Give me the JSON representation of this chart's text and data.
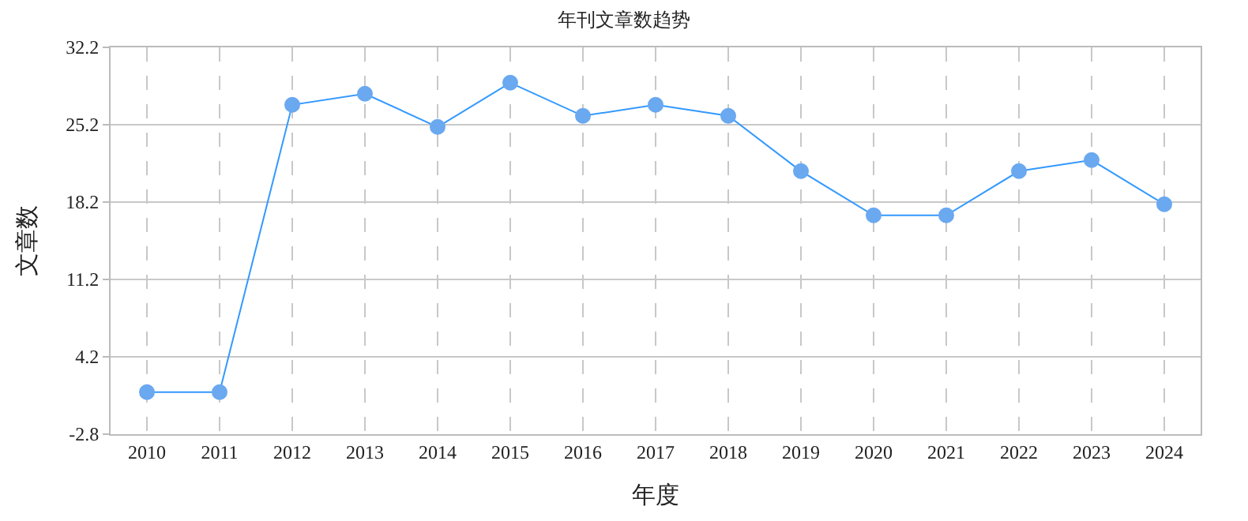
{
  "chart_data": {
    "type": "line",
    "title": "年刊文章数趋势",
    "xlabel": "年度",
    "ylabel": "文章数",
    "categories": [
      "2010",
      "2011",
      "2012",
      "2013",
      "2014",
      "2015",
      "2016",
      "2017",
      "2018",
      "2019",
      "2020",
      "2021",
      "2022",
      "2023",
      "2024"
    ],
    "series": [
      {
        "color": "#3399ff",
        "values": [
          1,
          1,
          27,
          28,
          25,
          29,
          26,
          27,
          26,
          21,
          17,
          17,
          21,
          22,
          18
        ]
      }
    ],
    "ylim": [
      -2.8,
      32.2
    ],
    "yticks": [
      -2.8,
      4.2,
      11.2,
      18.2,
      25.2,
      32.2
    ],
    "grid": true,
    "marker": "circle",
    "line_style": "solid"
  }
}
